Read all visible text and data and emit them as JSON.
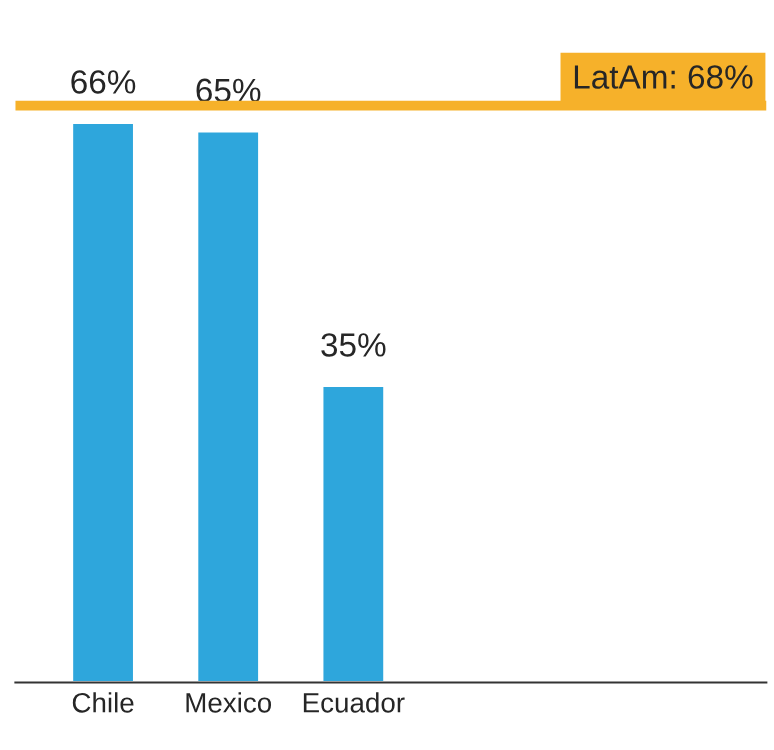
{
  "chart_data": {
    "type": "bar",
    "categories": [
      "Chile",
      "Mexico",
      "Ecuador"
    ],
    "values": [
      66,
      65,
      35
    ],
    "color": "#2ea6dc",
    "value_labels": [
      "66%",
      "65%",
      "35%"
    ],
    "tick_labels": "x",
    "ref_lines": [
      {
        "axis": "y",
        "value": 68,
        "label": "LatAm: 68%",
        "color": "#f6b12a",
        "line_style": "solid"
      }
    ]
  }
}
